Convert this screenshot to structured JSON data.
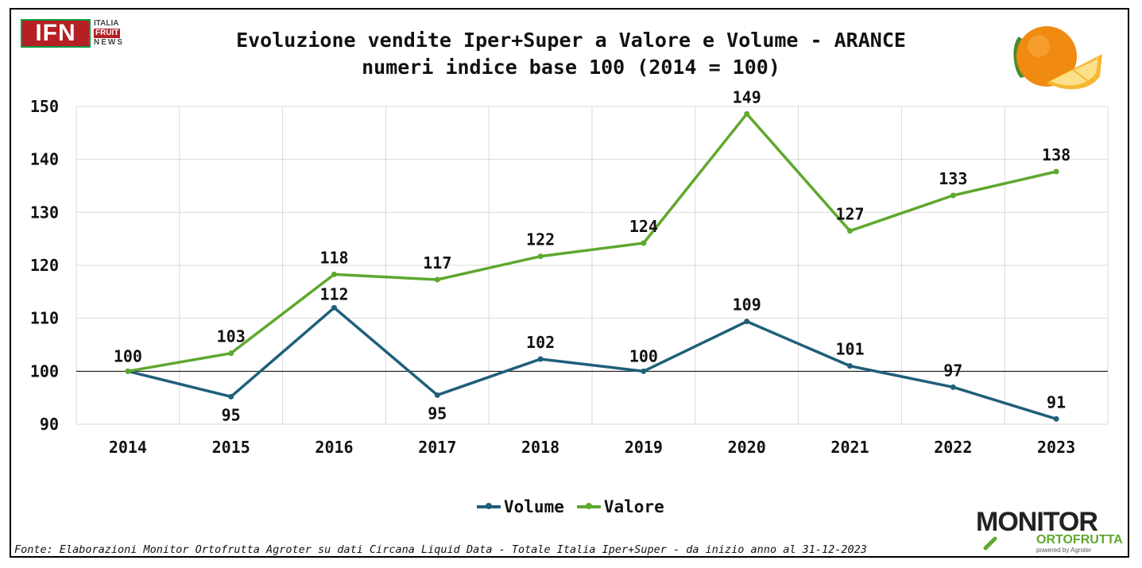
{
  "header": {
    "logo_left": {
      "main": "IFN",
      "line1": "ITALIA",
      "line2": "FRUIT",
      "line3": "NEWS"
    },
    "logo_right_name": "orange-fruit-image"
  },
  "chart_data": {
    "type": "line",
    "title": "Evoluzione vendite Iper+Super a Valore e Volume - ARANCE",
    "subtitle": "numeri indice base 100 (2014 = 100)",
    "x": [
      "2014",
      "2015",
      "2016",
      "2017",
      "2018",
      "2019",
      "2020",
      "2021",
      "2022",
      "2023"
    ],
    "ylim": [
      90,
      150
    ],
    "yticks": [
      90,
      100,
      110,
      120,
      130,
      140,
      150
    ],
    "reference_line": 100,
    "grid": true,
    "legend_position": "bottom",
    "series": [
      {
        "name": "Volume",
        "color": "#1f5f7a",
        "values": [
          100,
          95.2,
          112.0,
          95.5,
          102.3,
          100.0,
          109.4,
          101.0,
          97.0,
          91.0
        ],
        "labels": [
          "",
          "95",
          "112",
          "95",
          "102",
          "100",
          "109",
          "101",
          "97",
          "91"
        ]
      },
      {
        "name": "Valore",
        "color": "#5ea82e",
        "values": [
          100,
          103.4,
          118.3,
          117.3,
          121.7,
          124.2,
          148.6,
          126.5,
          133.2,
          137.7
        ],
        "labels": [
          "100",
          "103",
          "118",
          "117",
          "122",
          "124",
          "149",
          "127",
          "133",
          "138"
        ]
      }
    ]
  },
  "footer": {
    "source": "Fonte: Elaborazioni Monitor Ortofrutta Agroter su dati Circana Liquid Data - Totale Italia Iper+Super -  da inizio anno al 31-12-2023",
    "logo_monitor": {
      "word": "MONITOR",
      "sub": "ORTOFRUTTA",
      "powered": "powered by Agroter"
    }
  }
}
